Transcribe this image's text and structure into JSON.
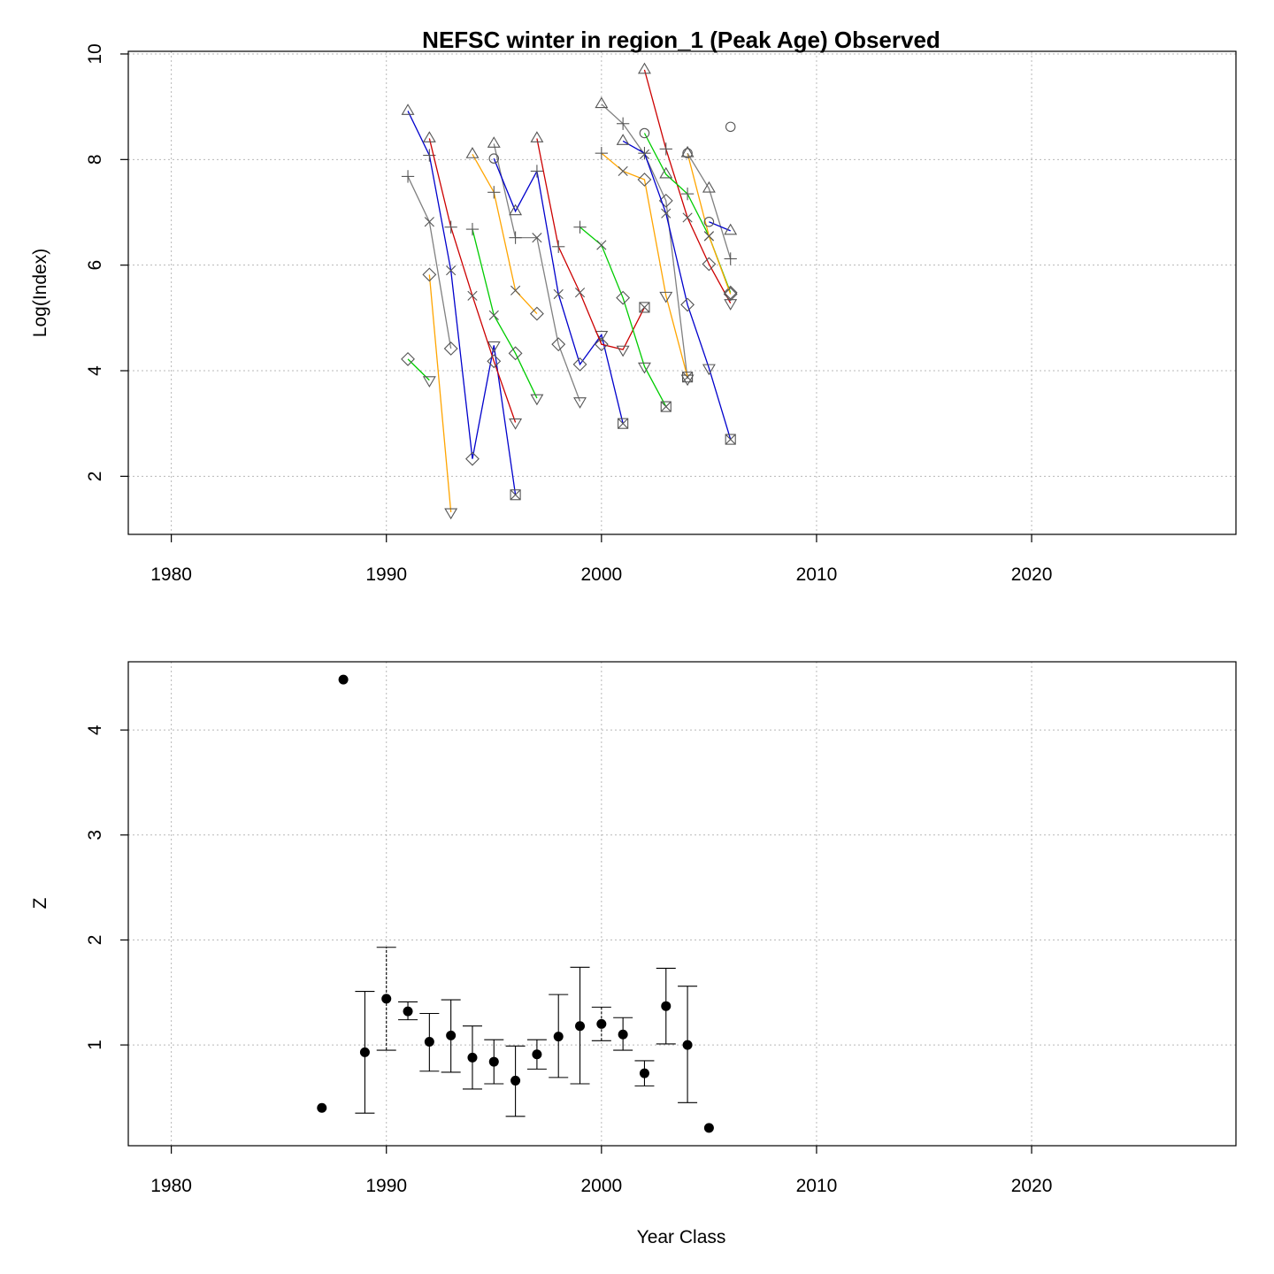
{
  "chart_data": [
    {
      "type": "line",
      "title": "NEFSC winter in region_1 (Peak Age) Observed",
      "xlabel": "",
      "ylabel": "Log(Index)",
      "xlim": [
        1978,
        2029.5
      ],
      "ylim": [
        0.9,
        10.05
      ],
      "xticks": [
        "1980",
        "1990",
        "2000",
        "2010",
        "2020"
      ],
      "yticks": [
        "2",
        "4",
        "6",
        "8",
        "10"
      ],
      "grid": true,
      "series": [
        {
          "color": "#00cc00",
          "points": [
            {
              "x": 1991,
              "y": 4.22,
              "m": "diamond"
            },
            {
              "x": 1992,
              "y": 3.82,
              "m": "tridown"
            }
          ]
        },
        {
          "color": "#808080",
          "points": [
            {
              "x": 1991,
              "y": 7.68,
              "m": "plus"
            },
            {
              "x": 1992,
              "y": 6.82,
              "m": "cross"
            },
            {
              "x": 1993,
              "y": 4.42,
              "m": "diamond"
            }
          ]
        },
        {
          "color": "#0000cc",
          "points": [
            {
              "x": 1991,
              "y": 8.92,
              "m": "triangle"
            },
            {
              "x": 1992,
              "y": 8.08,
              "m": "plus"
            },
            {
              "x": 1993,
              "y": 5.9,
              "m": "cross"
            },
            {
              "x": 1994,
              "y": 2.33,
              "m": "diamond"
            },
            {
              "x": 1995,
              "y": 4.48,
              "m": "tridown"
            },
            {
              "x": 1996,
              "y": 1.65,
              "m": "boxx"
            }
          ]
        },
        {
          "color": "#ffa500",
          "points": [
            {
              "x": 1992,
              "y": 5.82,
              "m": "diamond"
            },
            {
              "x": 1993,
              "y": 1.32,
              "m": "tridown"
            }
          ]
        },
        {
          "color": "#cc0000",
          "points": [
            {
              "x": 1992,
              "y": 8.4,
              "m": "triangle"
            },
            {
              "x": 1993,
              "y": 6.72,
              "m": "plus"
            },
            {
              "x": 1994,
              "y": 5.42,
              "m": "cross"
            },
            {
              "x": 1995,
              "y": 4.18,
              "m": "diamond"
            },
            {
              "x": 1996,
              "y": 3.02,
              "m": "tridown"
            }
          ]
        },
        {
          "color": "#00cc00",
          "points": [
            {
              "x": 1994,
              "y": 6.68,
              "m": "plus"
            },
            {
              "x": 1995,
              "y": 5.05,
              "m": "cross"
            },
            {
              "x": 1996,
              "y": 4.33,
              "m": "diamond"
            },
            {
              "x": 1997,
              "y": 3.48,
              "m": "tridown"
            }
          ]
        },
        {
          "color": "#ffa500",
          "points": [
            {
              "x": 1994,
              "y": 8.1,
              "m": "triangle"
            },
            {
              "x": 1995,
              "y": 7.38,
              "m": "plus"
            },
            {
              "x": 1996,
              "y": 5.52,
              "m": "cross"
            },
            {
              "x": 1997,
              "y": 5.08,
              "m": "diamond"
            }
          ]
        },
        {
          "color": "#808080",
          "points": [
            {
              "x": 1995,
              "y": 8.3,
              "m": "triangle"
            },
            {
              "x": 1996,
              "y": 6.52,
              "m": "plus"
            },
            {
              "x": 1997,
              "y": 6.52,
              "m": "cross"
            },
            {
              "x": 1998,
              "y": 4.5,
              "m": "diamond"
            },
            {
              "x": 1999,
              "y": 3.42,
              "m": "tridown"
            }
          ]
        },
        {
          "color": "#0000cc",
          "points": [
            {
              "x": 1995,
              "y": 8.02,
              "m": "circle"
            },
            {
              "x": 1996,
              "y": 7.02,
              "m": "triangle"
            },
            {
              "x": 1997,
              "y": 7.78,
              "m": "plus"
            },
            {
              "x": 1998,
              "y": 5.45,
              "m": "cross"
            },
            {
              "x": 1999,
              "y": 4.12,
              "m": "diamond"
            },
            {
              "x": 2000,
              "y": 4.68,
              "m": "tridown"
            },
            {
              "x": 2001,
              "y": 3.0,
              "m": "boxx"
            }
          ]
        },
        {
          "color": "#cc0000",
          "points": [
            {
              "x": 1997,
              "y": 8.4,
              "m": "triangle"
            },
            {
              "x": 1998,
              "y": 6.35,
              "m": "plus"
            },
            {
              "x": 1999,
              "y": 5.48,
              "m": "cross"
            },
            {
              "x": 2000,
              "y": 4.5,
              "m": "diamond"
            },
            {
              "x": 2001,
              "y": 4.4,
              "m": "tridown"
            },
            {
              "x": 2002,
              "y": 5.2,
              "m": "boxx"
            }
          ]
        },
        {
          "color": "#00cc00",
          "points": [
            {
              "x": 1999,
              "y": 6.72,
              "m": "plus"
            },
            {
              "x": 2000,
              "y": 6.38,
              "m": "cross"
            },
            {
              "x": 2001,
              "y": 5.38,
              "m": "diamond"
            },
            {
              "x": 2002,
              "y": 4.08,
              "m": "tridown"
            },
            {
              "x": 2003,
              "y": 3.32,
              "m": "boxx"
            }
          ]
        },
        {
          "color": "#808080",
          "points": [
            {
              "x": 2000,
              "y": 9.05,
              "m": "triangle"
            },
            {
              "x": 2001,
              "y": 8.68,
              "m": "plus"
            },
            {
              "x": 2002,
              "y": 8.1,
              "m": "cross"
            },
            {
              "x": 2003,
              "y": 7.22,
              "m": "diamond"
            },
            {
              "x": 2004,
              "y": 3.85,
              "m": "tridown"
            }
          ]
        },
        {
          "color": "#ffa500",
          "points": [
            {
              "x": 2000,
              "y": 8.12,
              "m": "plus"
            },
            {
              "x": 2001,
              "y": 7.78,
              "m": "cross"
            },
            {
              "x": 2002,
              "y": 7.62,
              "m": "diamond"
            },
            {
              "x": 2003,
              "y": 5.42,
              "m": "tridown"
            },
            {
              "x": 2004,
              "y": 3.88,
              "m": "boxx"
            }
          ]
        },
        {
          "color": "#0000cc",
          "points": [
            {
              "x": 2001,
              "y": 8.35,
              "m": "triangle"
            },
            {
              "x": 2002,
              "y": 8.12,
              "m": "plus"
            },
            {
              "x": 2003,
              "y": 6.98,
              "m": "cross"
            },
            {
              "x": 2004,
              "y": 5.25,
              "m": "diamond"
            },
            {
              "x": 2005,
              "y": 4.05,
              "m": "tridown"
            },
            {
              "x": 2006,
              "y": 2.7,
              "m": "boxx"
            }
          ]
        },
        {
          "color": "#cc0000",
          "points": [
            {
              "x": 2002,
              "y": 9.7,
              "m": "triangle"
            },
            {
              "x": 2003,
              "y": 8.2,
              "m": "plus"
            },
            {
              "x": 2004,
              "y": 6.9,
              "m": "cross"
            },
            {
              "x": 2005,
              "y": 6.02,
              "m": "diamond"
            },
            {
              "x": 2006,
              "y": 5.28,
              "m": "tridown"
            }
          ]
        },
        {
          "color": "#00cc00",
          "points": [
            {
              "x": 2002,
              "y": 8.5,
              "m": "circle"
            },
            {
              "x": 2003,
              "y": 7.72,
              "m": "triangle"
            },
            {
              "x": 2004,
              "y": 7.35,
              "m": "plus"
            },
            {
              "x": 2005,
              "y": 6.55,
              "m": "cross"
            },
            {
              "x": 2006,
              "y": 5.48,
              "m": "diamond"
            }
          ]
        },
        {
          "color": "#ffa500",
          "points": [
            {
              "x": 2004,
              "y": 8.12,
              "m": "circle"
            },
            {
              "x": 2005,
              "y": 6.55,
              "m": "cross"
            },
            {
              "x": 2006,
              "y": 5.45,
              "m": "diamond"
            }
          ]
        },
        {
          "color": "#808080",
          "points": [
            {
              "x": 2004,
              "y": 8.12,
              "m": "triangle"
            },
            {
              "x": 2005,
              "y": 7.45,
              "m": "triangle"
            },
            {
              "x": 2006,
              "y": 6.12,
              "m": "plus"
            }
          ]
        },
        {
          "color": "#0000cc",
          "points": [
            {
              "x": 2005,
              "y": 6.82,
              "m": "circle"
            },
            {
              "x": 2006,
              "y": 6.65,
              "m": "triangle"
            }
          ]
        },
        {
          "color": "#808080",
          "points": [
            {
              "x": 2006,
              "y": 8.62,
              "m": "circle"
            }
          ]
        }
      ]
    },
    {
      "type": "scatter",
      "title": "",
      "xlabel": "Year Class",
      "ylabel": "Z",
      "xlim": [
        1978,
        2029.5
      ],
      "ylim": [
        0.04,
        4.65
      ],
      "xticks": [
        "1980",
        "1990",
        "2000",
        "2010",
        "2020"
      ],
      "yticks": [
        "1",
        "2",
        "3",
        "4"
      ],
      "grid": true,
      "points": [
        {
          "x": 1987,
          "y": 0.4
        },
        {
          "x": 1988,
          "y": 4.48
        },
        {
          "x": 1989,
          "y": 0.93,
          "lo": 0.35,
          "hi": 1.51
        },
        {
          "x": 1990,
          "y": 1.44,
          "lo": 0.95,
          "hi": 1.93,
          "dashed": true
        },
        {
          "x": 1991,
          "y": 1.32,
          "lo": 1.24,
          "hi": 1.41
        },
        {
          "x": 1992,
          "y": 1.03,
          "lo": 0.75,
          "hi": 1.3
        },
        {
          "x": 1993,
          "y": 1.09,
          "lo": 0.74,
          "hi": 1.43
        },
        {
          "x": 1994,
          "y": 0.88,
          "lo": 0.58,
          "hi": 1.18
        },
        {
          "x": 1995,
          "y": 0.84,
          "lo": 0.63,
          "hi": 1.05
        },
        {
          "x": 1996,
          "y": 0.66,
          "lo": 0.32,
          "hi": 0.99
        },
        {
          "x": 1997,
          "y": 0.91,
          "lo": 0.77,
          "hi": 1.05
        },
        {
          "x": 1998,
          "y": 1.08,
          "lo": 0.69,
          "hi": 1.48
        },
        {
          "x": 1999,
          "y": 1.18,
          "lo": 0.63,
          "hi": 1.74
        },
        {
          "x": 2000,
          "y": 1.2,
          "lo": 1.04,
          "hi": 1.36,
          "dashed": true
        },
        {
          "x": 2001,
          "y": 1.1,
          "lo": 0.95,
          "hi": 1.26
        },
        {
          "x": 2002,
          "y": 0.73,
          "lo": 0.61,
          "hi": 0.85
        },
        {
          "x": 2003,
          "y": 1.37,
          "lo": 1.01,
          "hi": 1.73
        },
        {
          "x": 2004,
          "y": 1.0,
          "lo": 0.45,
          "hi": 1.56
        },
        {
          "x": 2005,
          "y": 0.21
        }
      ]
    }
  ]
}
